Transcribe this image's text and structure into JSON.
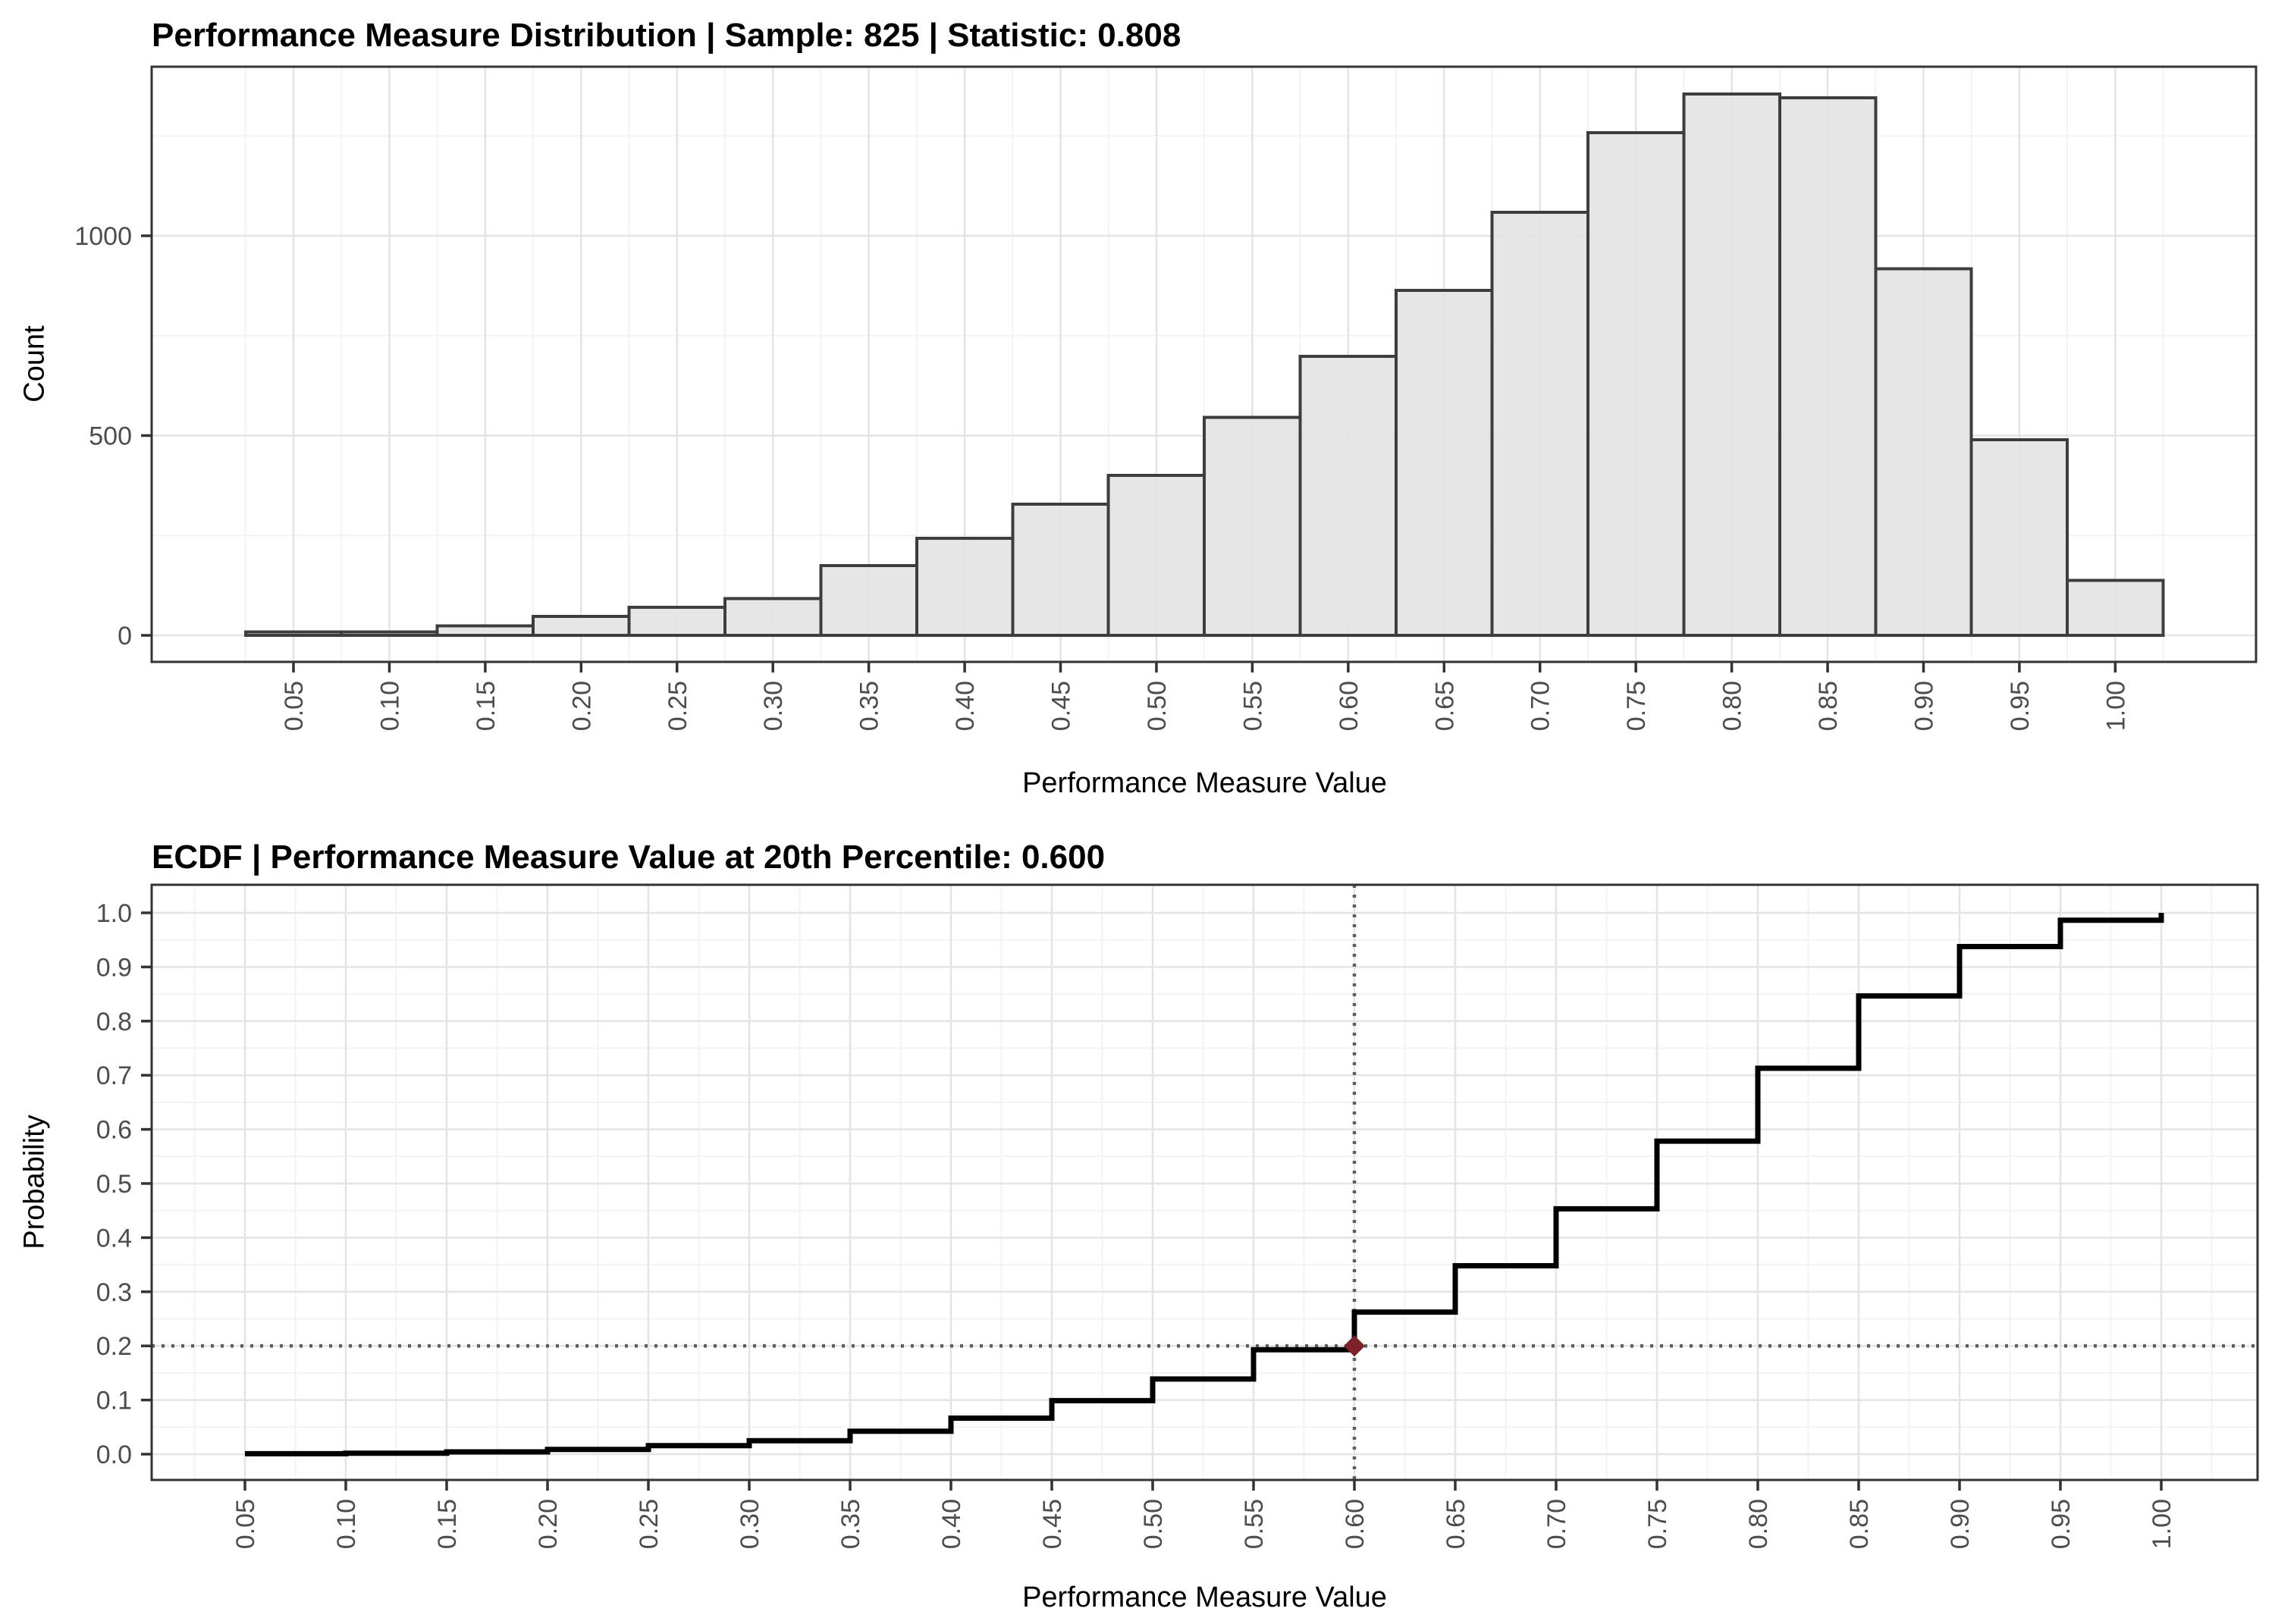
{
  "colors": {
    "accent_point": "#7d2228",
    "bar_fill": "#e3e3e3",
    "bar_stroke": "#3d3d3d",
    "ecdf_line": "#000000",
    "dotted_line": "#5d5d5d",
    "panel_border": "#333333",
    "grid_major": "#e4e4e4",
    "grid_minor": "#f3f3f3",
    "tick_label": "#4d4d4d",
    "background": "#ffffff"
  },
  "chart_data": [
    {
      "type": "bar",
      "subtype": "histogram",
      "title": "Performance Measure Distribution | Sample: 825 | Statistic: 0.808",
      "xlabel": "Performance Measure Value",
      "ylabel": "Count",
      "categories": [
        "0.05",
        "0.10",
        "0.15",
        "0.20",
        "0.25",
        "0.30",
        "0.35",
        "0.40",
        "0.45",
        "0.50",
        "0.55",
        "0.60",
        "0.65",
        "0.70",
        "0.75",
        "0.80",
        "0.85",
        "0.90",
        "0.95",
        "1.00"
      ],
      "values": [
        9,
        9,
        24,
        47,
        70,
        92,
        175,
        243,
        328,
        400,
        546,
        698,
        863,
        1059,
        1258,
        1355,
        1345,
        917,
        490,
        138
      ],
      "y_ticks": [
        0,
        500,
        1000
      ],
      "y_minor_ticks": [
        250,
        750,
        1250
      ],
      "ylim": [
        0,
        1420
      ],
      "grid": true,
      "legend_position": "none"
    },
    {
      "type": "line",
      "subtype": "ecdf-step",
      "title": "ECDF | Performance Measure Value at 20th Percentile: 0.600",
      "xlabel": "Performance Measure Value",
      "ylabel": "Probability",
      "x": [
        0.05,
        0.1,
        0.15,
        0.2,
        0.25,
        0.3,
        0.35,
        0.4,
        0.45,
        0.5,
        0.55,
        0.6,
        0.65,
        0.7,
        0.75,
        0.8,
        0.85,
        0.9,
        0.95,
        1.0
      ],
      "y": [
        0.0009,
        0.0018,
        0.0042,
        0.0088,
        0.0158,
        0.0249,
        0.0423,
        0.0665,
        0.099,
        0.1388,
        0.193,
        0.2624,
        0.3481,
        0.4533,
        0.5783,
        0.7129,
        0.8465,
        0.9376,
        0.9863,
        1.0
      ],
      "x_tick_labels": [
        "0.05",
        "0.10",
        "0.15",
        "0.20",
        "0.25",
        "0.30",
        "0.35",
        "0.40",
        "0.45",
        "0.50",
        "0.55",
        "0.60",
        "0.65",
        "0.70",
        "0.75",
        "0.80",
        "0.85",
        "0.90",
        "0.95",
        "1.00"
      ],
      "y_tick_labels": [
        "0.0",
        "0.1",
        "0.2",
        "0.3",
        "0.4",
        "0.5",
        "0.6",
        "0.7",
        "0.8",
        "0.9",
        "1.0"
      ],
      "ylim": [
        0,
        1
      ],
      "grid": true,
      "reference_lines": {
        "horizontal_y": 0.2,
        "vertical_x": 0.6,
        "style": "dotted"
      },
      "highlight_point": {
        "x": 0.6,
        "y": 0.2,
        "shape": "diamond"
      },
      "percentile_annotation": {
        "percentile": "20th",
        "value": "0.600"
      }
    }
  ]
}
